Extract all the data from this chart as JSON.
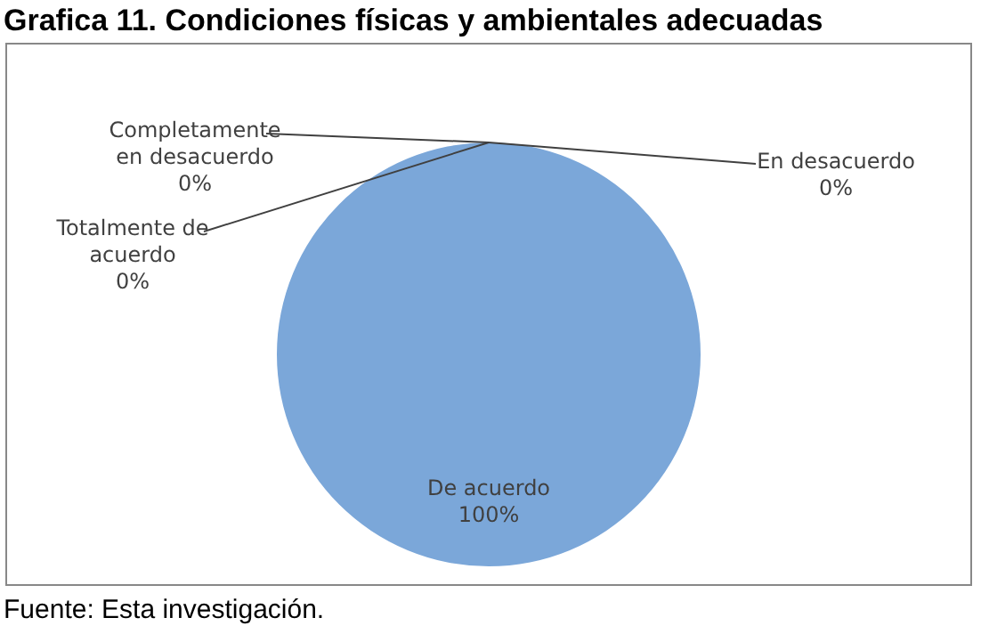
{
  "chart_data": {
    "type": "pie",
    "title": "Grafica 11. Condiciones físicas y ambientales adecuadas",
    "categories": [
      "Completamente en desacuerdo",
      "En desacuerdo",
      "De acuerdo",
      "Totalmente de acuerdo"
    ],
    "values": [
      0,
      0,
      100,
      0
    ],
    "colors": [
      "#4f81bd",
      "#c0504d",
      "#7ba7d9",
      "#8064a2"
    ],
    "value_labels": [
      "0%",
      "0%",
      "100%",
      "0%"
    ],
    "legend": false,
    "annotations": [
      "Fuente: Esta investigación."
    ]
  }
}
